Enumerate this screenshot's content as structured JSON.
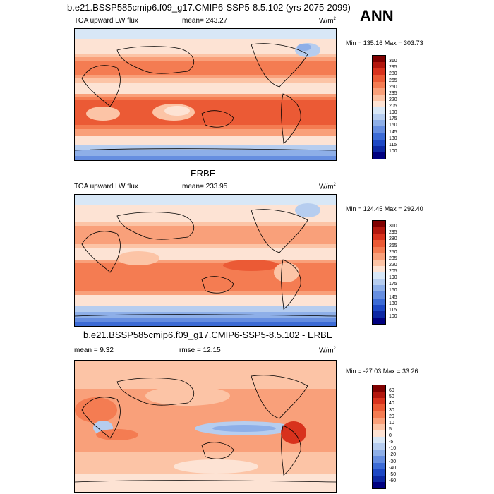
{
  "season": "ANN",
  "panels": [
    {
      "title": "b.e21.BSSP585cmip6.f09_g17.CMIP6-SSP5-8.5.102 (yrs 2075-2099)",
      "left_label": "TOA upward LW flux",
      "center_label": "mean= 243.27",
      "units": "W/m",
      "units_sup": "2",
      "minmax": "Min = 135.16 Max = 303.73",
      "colorbar_labels": [
        "310",
        "295",
        "280",
        "265",
        "250",
        "235",
        "220",
        "205",
        "190",
        "175",
        "160",
        "145",
        "130",
        "115",
        "100"
      ]
    },
    {
      "title": "ERBE",
      "left_label": "TOA upward LW flux",
      "center_label": "mean= 233.95",
      "units": "W/m",
      "units_sup": "2",
      "minmax": "Min = 124.45 Max = 292.40",
      "colorbar_labels": [
        "310",
        "295",
        "280",
        "265",
        "250",
        "235",
        "220",
        "205",
        "190",
        "175",
        "160",
        "145",
        "130",
        "115",
        "100"
      ]
    },
    {
      "title": "b.e21.BSSP585cmip6.f09_g17.CMIP6-SSP5-8.5.102 - ERBE",
      "left_label": "mean =   9.32",
      "center_label": "rmse =  12.15",
      "units": "W/m",
      "units_sup": "2",
      "minmax": "Min = -27.03 Max =  33.26",
      "colorbar_labels": [
        "60",
        "50",
        "40",
        "30",
        "20",
        "10",
        "5",
        "0",
        "-5",
        "-10",
        "-20",
        "-30",
        "-40",
        "-50",
        "-60"
      ]
    }
  ],
  "colors": {
    "abs_scale": [
      "#7f0000",
      "#b2170e",
      "#d8321d",
      "#eb5a35",
      "#f47c52",
      "#f9a07a",
      "#fcc4a6",
      "#fde3d4",
      "#d8e7f6",
      "#b6cdef",
      "#8eafe8",
      "#668ee0",
      "#3c6bd5",
      "#1e48c4",
      "#0d28a3",
      "#00007f"
    ],
    "diff_scale": [
      "#7f0000",
      "#b2170e",
      "#d8321d",
      "#eb5a35",
      "#f47c52",
      "#f9a07a",
      "#fcc4a6",
      "#fde3d4",
      "#d8e7f6",
      "#b6cdef",
      "#8eafe8",
      "#668ee0",
      "#3c6bd5",
      "#1e48c4",
      "#0d28a3",
      "#00007f"
    ]
  }
}
